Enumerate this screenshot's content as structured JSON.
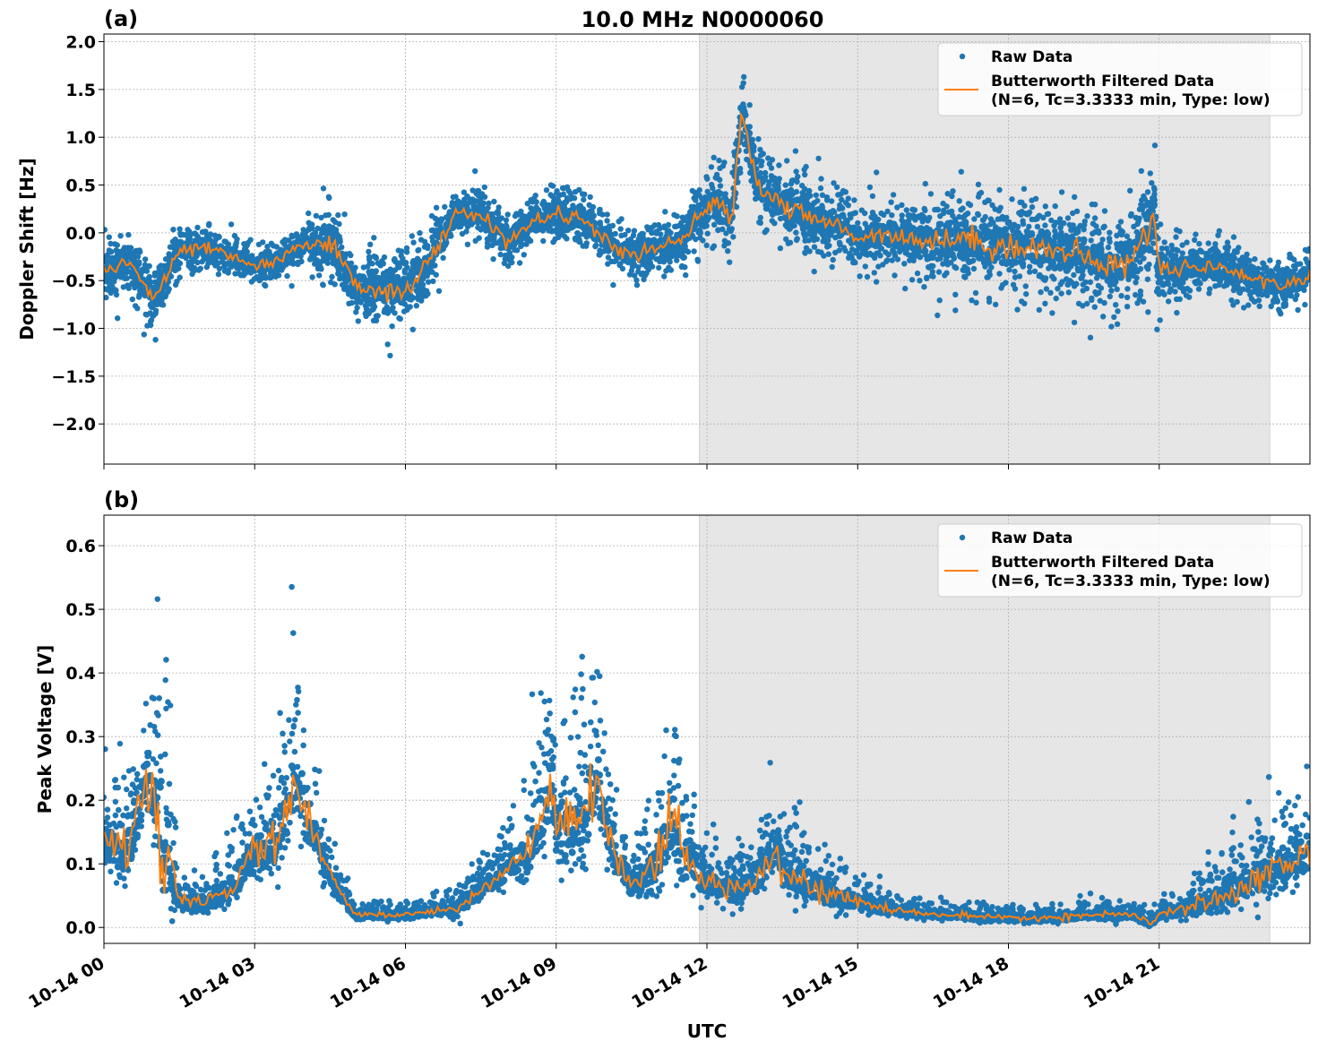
{
  "title": "10.0 MHz N0000060",
  "colors": {
    "raw": "#1f77b4",
    "filtered": "#ff7f0e",
    "shade": "#e6e6e6"
  },
  "chart_data": [
    {
      "type": "scatter",
      "panel_label": "(a)",
      "ylabel": "Doppler Shift [Hz]",
      "xlabel": "UTC",
      "xlim": [
        "10-14 00:00",
        "10-15 00:00"
      ],
      "ylim": [
        -2.42,
        2.08
      ],
      "yticks": [
        2.0,
        1.5,
        1.0,
        0.5,
        0.0,
        -0.5,
        -1.0,
        -1.5,
        -2.0
      ],
      "ytick_labels": [
        "2.0",
        "1.5",
        "1.0",
        "0.5",
        "0.0",
        "−0.5",
        "−1.0",
        "−1.5",
        "−2.0"
      ],
      "grid": true,
      "shaded_interval": [
        "10-14 11:51",
        "10-14 23:12"
      ],
      "legend": {
        "placement": "top-right",
        "entries": [
          "Raw Data",
          "Butterworth Filtered Data",
          "(N=6, Tc=3.3333 min, Type: low)"
        ]
      },
      "filtered": {
        "x": [
          "00:00",
          "00:30",
          "01:00",
          "01:30",
          "02:00",
          "02:30",
          "03:00",
          "03:30",
          "04:00",
          "04:30",
          "05:00",
          "05:30",
          "06:00",
          "06:30",
          "07:00",
          "07:30",
          "08:00",
          "08:30",
          "09:00",
          "09:30",
          "10:00",
          "10:30",
          "11:00",
          "11:30",
          "12:00",
          "12:30",
          "12:42",
          "13:00",
          "13:30",
          "14:00",
          "14:30",
          "15:00",
          "15:30",
          "16:00",
          "16:30",
          "17:00",
          "17:30",
          "18:00",
          "18:30",
          "19:00",
          "19:30",
          "20:00",
          "20:30",
          "20:54",
          "21:00",
          "21:30",
          "22:00",
          "22:30",
          "23:00",
          "23:30",
          "24:00"
        ],
        "y": [
          -0.4,
          -0.3,
          -0.7,
          -0.2,
          -0.15,
          -0.25,
          -0.35,
          -0.3,
          -0.1,
          -0.1,
          -0.55,
          -0.6,
          -0.6,
          -0.3,
          0.2,
          0.2,
          -0.1,
          0.1,
          0.2,
          0.15,
          -0.1,
          -0.25,
          -0.15,
          -0.1,
          0.3,
          0.2,
          1.3,
          0.5,
          0.3,
          0.15,
          0.1,
          -0.05,
          0.0,
          -0.05,
          -0.1,
          -0.05,
          -0.1,
          -0.15,
          -0.15,
          -0.2,
          -0.25,
          -0.35,
          -0.3,
          0.25,
          -0.4,
          -0.35,
          -0.35,
          -0.4,
          -0.5,
          -0.55,
          -0.45
        ]
      },
      "raw_spread": {
        "x": [
          "00:00",
          "01:30",
          "02:00",
          "04:00",
          "04:30",
          "06:30",
          "07:00",
          "10:00",
          "11:30",
          "12:00",
          "14:00",
          "14:30",
          "16:00",
          "17:00",
          "20:30",
          "20:54",
          "21:10",
          "22:00",
          "24:00"
        ],
        "y": [
          0.35,
          0.35,
          0.25,
          0.25,
          0.45,
          0.45,
          0.3,
          0.3,
          0.3,
          0.45,
          0.45,
          0.35,
          0.4,
          0.6,
          0.6,
          0.85,
          0.35,
          0.3,
          0.3
        ]
      }
    },
    {
      "type": "scatter",
      "panel_label": "(b)",
      "ylabel": "Peak Voltage [V]",
      "xlabel": "UTC",
      "xlim": [
        "10-14 00:00",
        "10-15 00:00"
      ],
      "ylim": [
        -0.025,
        0.648
      ],
      "yticks": [
        0.6,
        0.5,
        0.4,
        0.3,
        0.2,
        0.1,
        0.0
      ],
      "ytick_labels": [
        "0.6",
        "0.5",
        "0.4",
        "0.3",
        "0.2",
        "0.1",
        "0.0"
      ],
      "xticks": [
        "10-14 00:00",
        "10-14 03:00",
        "10-14 06:00",
        "10-14 09:00",
        "10-14 12:00",
        "10-14 15:00",
        "10-14 18:00",
        "10-14 21:00"
      ],
      "xtick_labels": [
        "10-14 00",
        "10-14 03",
        "10-14 06",
        "10-14 09",
        "10-14 12",
        "10-14 15",
        "10-14 18",
        "10-14 21"
      ],
      "grid": true,
      "shaded_interval": [
        "10-14 11:51",
        "10-14 23:12"
      ],
      "legend": {
        "placement": "top-right",
        "entries": [
          "Raw Data",
          "Butterworth Filtered Data",
          "(N=6, Tc=3.3333 min, Type: low)"
        ]
      },
      "filtered": {
        "x": [
          "00:00",
          "00:30",
          "00:50",
          "01:00",
          "01:30",
          "02:00",
          "02:30",
          "03:00",
          "03:30",
          "03:50",
          "04:00",
          "04:30",
          "05:00",
          "05:30",
          "06:00",
          "06:30",
          "07:00",
          "07:30",
          "08:00",
          "08:30",
          "08:55",
          "09:00",
          "09:30",
          "09:50",
          "10:00",
          "10:30",
          "11:00",
          "11:20",
          "11:30",
          "12:00",
          "12:30",
          "13:00",
          "13:25",
          "13:30",
          "14:00",
          "14:30",
          "15:00",
          "15:30",
          "16:00",
          "16:30",
          "17:00",
          "17:30",
          "18:00",
          "18:30",
          "19:00",
          "19:30",
          "20:00",
          "20:30",
          "20:50",
          "21:00",
          "21:30",
          "22:00",
          "22:30",
          "23:00",
          "23:30",
          "24:00"
        ],
        "y": [
          0.13,
          0.12,
          0.23,
          0.2,
          0.04,
          0.04,
          0.06,
          0.12,
          0.14,
          0.24,
          0.18,
          0.08,
          0.02,
          0.02,
          0.02,
          0.025,
          0.03,
          0.06,
          0.09,
          0.12,
          0.23,
          0.15,
          0.17,
          0.23,
          0.15,
          0.06,
          0.1,
          0.17,
          0.12,
          0.07,
          0.06,
          0.08,
          0.13,
          0.09,
          0.07,
          0.05,
          0.04,
          0.03,
          0.025,
          0.02,
          0.02,
          0.015,
          0.015,
          0.015,
          0.015,
          0.02,
          0.02,
          0.02,
          0.005,
          0.02,
          0.03,
          0.04,
          0.06,
          0.08,
          0.1,
          0.12
        ]
      },
      "raw_spread": {
        "x": [
          "00:00",
          "01:00",
          "01:10",
          "01:30",
          "03:00",
          "03:50",
          "04:30",
          "05:00",
          "06:30",
          "08:00",
          "08:55",
          "09:40",
          "10:30",
          "11:20",
          "12:00",
          "13:25",
          "14:00",
          "15:00",
          "16:00",
          "21:00",
          "22:00",
          "23:00",
          "24:00"
        ],
        "y": [
          0.12,
          0.15,
          0.35,
          0.03,
          0.1,
          0.2,
          0.06,
          0.02,
          0.02,
          0.06,
          0.18,
          0.2,
          0.04,
          0.2,
          0.07,
          0.1,
          0.08,
          0.04,
          0.02,
          0.02,
          0.06,
          0.1,
          0.12
        ]
      }
    }
  ]
}
